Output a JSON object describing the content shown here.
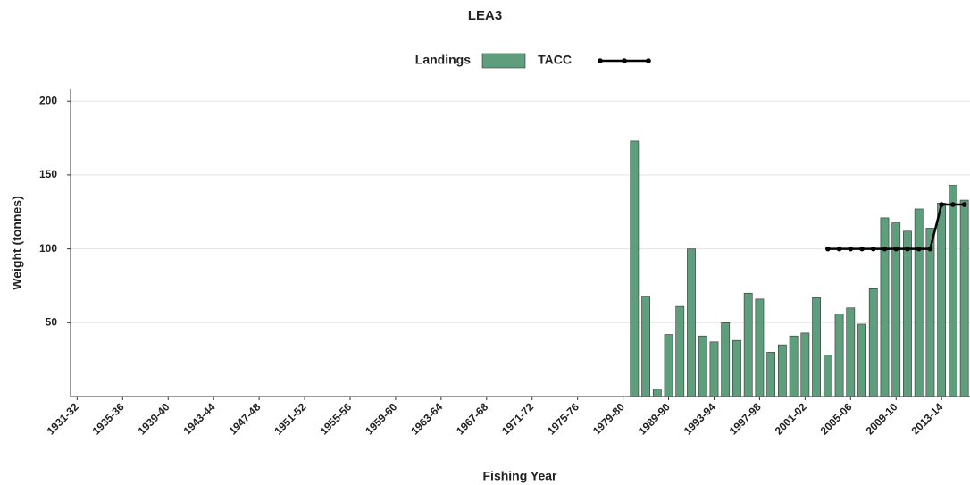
{
  "chart_data": {
    "type": "bar",
    "title": "LEA3",
    "x_label": "Fishing Year",
    "y_label": "Weight (tonnes)",
    "categories": [
      "1931-32",
      null,
      null,
      null,
      "1935-36",
      null,
      null,
      null,
      "1939-40",
      null,
      null,
      null,
      "1943-44",
      null,
      null,
      null,
      "1947-48",
      null,
      null,
      null,
      "1951-52",
      null,
      null,
      null,
      "1955-56",
      null,
      null,
      null,
      "1959-60",
      null,
      null,
      null,
      "1963-64",
      null,
      null,
      null,
      "1967-68",
      null,
      null,
      null,
      "1971-72",
      null,
      null,
      null,
      "1975-76",
      null,
      null,
      null,
      "1979-80",
      null,
      null,
      null,
      "1989-90",
      null,
      null,
      null,
      "1993-94",
      null,
      null,
      null,
      "1997-98",
      null,
      null,
      null,
      "2001-02",
      null,
      null,
      null,
      "2005-06",
      null,
      null,
      null,
      "2009-10",
      null,
      null,
      null,
      "2013-14",
      null,
      null
    ],
    "series": [
      {
        "name": "Landings",
        "type": "bar",
        "color": "#5e9e7c",
        "values": [
          null,
          null,
          null,
          null,
          null,
          null,
          null,
          null,
          null,
          null,
          null,
          null,
          null,
          null,
          null,
          null,
          null,
          null,
          null,
          null,
          null,
          null,
          null,
          null,
          null,
          null,
          null,
          null,
          null,
          null,
          null,
          null,
          null,
          null,
          null,
          null,
          null,
          null,
          null,
          null,
          null,
          null,
          null,
          null,
          null,
          null,
          null,
          null,
          null,
          173,
          68,
          5,
          42,
          61,
          100,
          41,
          37,
          50,
          38,
          70,
          66,
          30,
          35,
          41,
          43,
          67,
          28,
          56,
          60,
          49,
          73,
          121,
          118,
          112,
          127,
          114,
          131,
          143,
          133
        ]
      },
      {
        "name": "TACC",
        "type": "line",
        "color": "#000000",
        "values": [
          null,
          null,
          null,
          null,
          null,
          null,
          null,
          null,
          null,
          null,
          null,
          null,
          null,
          null,
          null,
          null,
          null,
          null,
          null,
          null,
          null,
          null,
          null,
          null,
          null,
          null,
          null,
          null,
          null,
          null,
          null,
          null,
          null,
          null,
          null,
          null,
          null,
          null,
          null,
          null,
          null,
          null,
          null,
          null,
          null,
          null,
          null,
          null,
          null,
          null,
          null,
          null,
          null,
          null,
          null,
          null,
          null,
          null,
          null,
          null,
          null,
          null,
          null,
          null,
          null,
          null,
          100,
          100,
          100,
          100,
          100,
          100,
          100,
          100,
          100,
          100,
          130,
          130,
          130
        ]
      }
    ],
    "ylim": [
      0,
      208
    ],
    "yticks": [
      50,
      100,
      150,
      200
    ],
    "grid": true
  }
}
